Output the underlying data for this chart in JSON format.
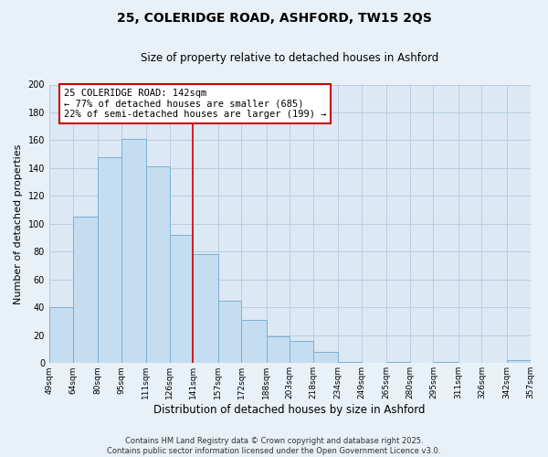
{
  "title": "25, COLERIDGE ROAD, ASHFORD, TW15 2QS",
  "subtitle": "Size of property relative to detached houses in Ashford",
  "xlabel": "Distribution of detached houses by size in Ashford",
  "ylabel": "Number of detached properties",
  "bins": [
    49,
    64,
    80,
    95,
    111,
    126,
    141,
    157,
    172,
    188,
    203,
    218,
    234,
    249,
    265,
    280,
    295,
    311,
    326,
    342,
    357
  ],
  "counts": [
    40,
    105,
    148,
    161,
    141,
    92,
    78,
    45,
    31,
    19,
    16,
    8,
    1,
    0,
    1,
    0,
    1,
    0,
    0,
    2
  ],
  "bar_color": "#c5ddf0",
  "bar_edge_color": "#7ab0d4",
  "bg_color": "#e8f0f8",
  "plot_bg_color": "#dce8f4",
  "vline_x": 141,
  "vline_color": "#cc0000",
  "annotation_text_line1": "25 COLERIDGE ROAD: 142sqm",
  "annotation_text_line2": "← 77% of detached houses are smaller (685)",
  "annotation_text_line3": "22% of semi-detached houses are larger (199) →",
  "ylim": [
    0,
    200
  ],
  "yticks": [
    0,
    20,
    40,
    60,
    80,
    100,
    120,
    140,
    160,
    180,
    200
  ],
  "tick_labels": [
    "49sqm",
    "64sqm",
    "80sqm",
    "95sqm",
    "111sqm",
    "126sqm",
    "141sqm",
    "157sqm",
    "172sqm",
    "188sqm",
    "203sqm",
    "218sqm",
    "234sqm",
    "249sqm",
    "265sqm",
    "280sqm",
    "295sqm",
    "311sqm",
    "326sqm",
    "342sqm",
    "357sqm"
  ],
  "footer_line1": "Contains HM Land Registry data © Crown copyright and database right 2025.",
  "footer_line2": "Contains public sector information licensed under the Open Government Licence v3.0.",
  "grid_color": "#b8cfe0",
  "title_fontsize": 10,
  "subtitle_fontsize": 8.5,
  "ylabel_fontsize": 8,
  "xlabel_fontsize": 8.5,
  "tick_fontsize": 6.5,
  "annot_fontsize": 7.5,
  "footer_fontsize": 6
}
